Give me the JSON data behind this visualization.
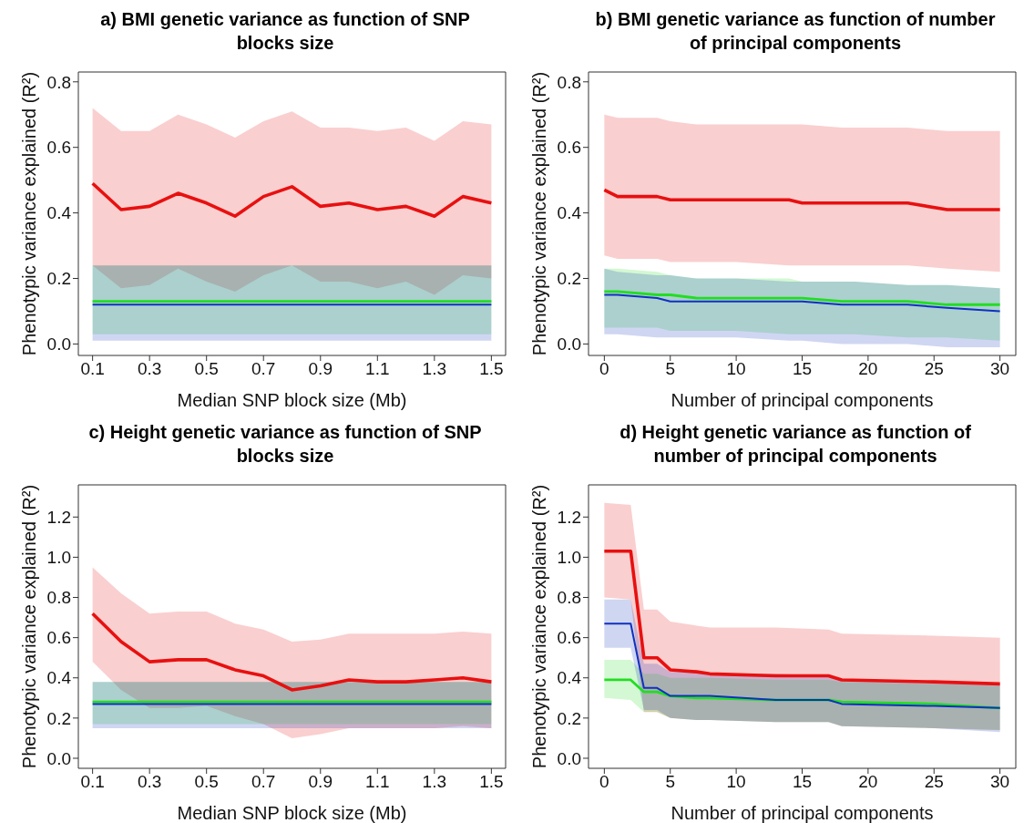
{
  "chart_data": [
    {
      "type": "line",
      "title": "a) BMI genetic variance as function of SNP blocks size",
      "xlabel": "Median SNP block size (Mb)",
      "ylabel": "Phenotypic variance explained (R²)",
      "x": [
        0.1,
        0.2,
        0.3,
        0.4,
        0.5,
        0.6,
        0.7,
        0.8,
        0.9,
        1.0,
        1.1,
        1.2,
        1.3,
        1.4,
        1.5
      ],
      "xlim": [
        0.05,
        1.55
      ],
      "xticks": [
        0.1,
        0.3,
        0.5,
        0.7,
        0.9,
        1.1,
        1.3,
        1.5
      ],
      "ylim": [
        -0.035,
        0.83
      ],
      "yticks": [
        {
          "value": 0,
          "label": "0.0"
        },
        {
          "value": 0.2,
          "label": "0.2"
        },
        {
          "value": 0.4,
          "label": "0.4"
        },
        {
          "value": 0.6,
          "label": "0.6"
        },
        {
          "value": 0.8,
          "label": "0.8"
        }
      ],
      "grid": false,
      "legend": false,
      "series": [
        {
          "color": "#e81010",
          "values": [
            0.49,
            0.41,
            0.42,
            0.46,
            0.43,
            0.39,
            0.45,
            0.48,
            0.42,
            0.43,
            0.41,
            0.42,
            0.39,
            0.45,
            0.43
          ],
          "lower": [
            0.24,
            0.17,
            0.18,
            0.23,
            0.19,
            0.16,
            0.21,
            0.24,
            0.19,
            0.19,
            0.17,
            0.19,
            0.15,
            0.21,
            0.2
          ],
          "upper": [
            0.72,
            0.65,
            0.65,
            0.7,
            0.67,
            0.63,
            0.68,
            0.71,
            0.66,
            0.66,
            0.65,
            0.66,
            0.62,
            0.68,
            0.67
          ]
        },
        {
          "color": "#22dd22",
          "values": [
            0.13,
            0.13,
            0.13,
            0.13,
            0.13,
            0.13,
            0.13,
            0.13,
            0.13,
            0.13,
            0.13,
            0.13,
            0.13,
            0.13,
            0.13
          ],
          "lower": [
            0.03,
            0.03,
            0.03,
            0.03,
            0.03,
            0.03,
            0.03,
            0.03,
            0.03,
            0.03,
            0.03,
            0.03,
            0.03,
            0.03,
            0.03
          ],
          "upper": [
            0.24,
            0.24,
            0.24,
            0.24,
            0.24,
            0.24,
            0.24,
            0.24,
            0.24,
            0.24,
            0.24,
            0.24,
            0.24,
            0.24,
            0.24
          ]
        },
        {
          "color": "#1030c0",
          "values": [
            0.12,
            0.12,
            0.12,
            0.12,
            0.12,
            0.12,
            0.12,
            0.12,
            0.12,
            0.12,
            0.12,
            0.12,
            0.12,
            0.12,
            0.12
          ],
          "lower": [
            0.01,
            0.01,
            0.01,
            0.01,
            0.01,
            0.01,
            0.01,
            0.01,
            0.01,
            0.01,
            0.01,
            0.01,
            0.01,
            0.01,
            0.01
          ],
          "upper": [
            0.24,
            0.24,
            0.24,
            0.24,
            0.24,
            0.24,
            0.24,
            0.24,
            0.24,
            0.24,
            0.24,
            0.24,
            0.24,
            0.24,
            0.24
          ]
        }
      ]
    },
    {
      "type": "line",
      "title": "b) BMI genetic variance as function of number of principal components",
      "xlabel": "Number of principal components",
      "ylabel": "Phenotypic variance explained (R²)",
      "x": [
        0,
        1,
        4,
        5,
        7,
        10,
        14,
        15,
        18,
        19,
        23,
        26,
        30
      ],
      "xlim": [
        -1.2,
        31.2
      ],
      "xticks": [
        0,
        5,
        10,
        15,
        20,
        25,
        30
      ],
      "ylim": [
        -0.035,
        0.83
      ],
      "yticks": [
        {
          "value": 0,
          "label": "0.0"
        },
        {
          "value": 0.2,
          "label": "0.2"
        },
        {
          "value": 0.4,
          "label": "0.4"
        },
        {
          "value": 0.6,
          "label": "0.6"
        },
        {
          "value": 0.8,
          "label": "0.8"
        }
      ],
      "grid": false,
      "legend": false,
      "series": [
        {
          "color": "#e81010",
          "values": [
            0.47,
            0.45,
            0.45,
            0.44,
            0.44,
            0.44,
            0.44,
            0.43,
            0.43,
            0.43,
            0.43,
            0.41,
            0.41
          ],
          "lower": [
            0.27,
            0.26,
            0.26,
            0.25,
            0.25,
            0.25,
            0.24,
            0.24,
            0.24,
            0.24,
            0.24,
            0.23,
            0.22
          ],
          "upper": [
            0.7,
            0.69,
            0.69,
            0.68,
            0.67,
            0.67,
            0.67,
            0.67,
            0.66,
            0.66,
            0.66,
            0.65,
            0.65
          ]
        },
        {
          "color": "#22dd22",
          "values": [
            0.16,
            0.16,
            0.15,
            0.15,
            0.14,
            0.14,
            0.14,
            0.14,
            0.13,
            0.13,
            0.13,
            0.12,
            0.12
          ],
          "lower": [
            0.05,
            0.05,
            0.05,
            0.04,
            0.04,
            0.04,
            0.03,
            0.03,
            0.03,
            0.03,
            0.02,
            0.02,
            0.01
          ],
          "upper": [
            0.23,
            0.23,
            0.22,
            0.21,
            0.2,
            0.2,
            0.2,
            0.19,
            0.19,
            0.19,
            0.18,
            0.18,
            0.17
          ]
        },
        {
          "color": "#1030c0",
          "values": [
            0.15,
            0.15,
            0.14,
            0.13,
            0.13,
            0.13,
            0.13,
            0.13,
            0.12,
            0.12,
            0.12,
            0.11,
            0.1
          ],
          "lower": [
            0.03,
            0.03,
            0.02,
            0.02,
            0.02,
            0.02,
            0.01,
            0.01,
            0,
            0,
            0,
            -0.01,
            -0.01
          ],
          "upper": [
            0.23,
            0.22,
            0.21,
            0.21,
            0.2,
            0.2,
            0.19,
            0.19,
            0.19,
            0.19,
            0.18,
            0.18,
            0.17
          ]
        }
      ]
    },
    {
      "type": "line",
      "title": "c) Height genetic variance as function of SNP blocks size",
      "xlabel": "Median SNP block size (Mb)",
      "ylabel": "Phenotypic variance explained (R²)",
      "x": [
        0.1,
        0.2,
        0.3,
        0.4,
        0.5,
        0.6,
        0.7,
        0.8,
        0.9,
        1.0,
        1.1,
        1.2,
        1.3,
        1.4,
        1.5
      ],
      "xlim": [
        0.05,
        1.55
      ],
      "xticks": [
        0.1,
        0.3,
        0.5,
        0.7,
        0.9,
        1.1,
        1.3,
        1.5
      ],
      "ylim": [
        -0.05,
        1.36
      ],
      "yticks": [
        {
          "value": 0,
          "label": "0.0"
        },
        {
          "value": 0.2,
          "label": "0.2"
        },
        {
          "value": 0.4,
          "label": "0.4"
        },
        {
          "value": 0.6,
          "label": "0.6"
        },
        {
          "value": 0.8,
          "label": "0.8"
        },
        {
          "value": 1,
          "label": "1.0"
        },
        {
          "value": 1.2,
          "label": "1.2"
        }
      ],
      "grid": false,
      "legend": false,
      "series": [
        {
          "color": "#e81010",
          "values": [
            0.72,
            0.58,
            0.48,
            0.49,
            0.49,
            0.44,
            0.41,
            0.34,
            0.36,
            0.39,
            0.38,
            0.38,
            0.39,
            0.4,
            0.38
          ],
          "lower": [
            0.48,
            0.34,
            0.25,
            0.25,
            0.26,
            0.21,
            0.17,
            0.1,
            0.12,
            0.15,
            0.15,
            0.15,
            0.15,
            0.16,
            0.15
          ],
          "upper": [
            0.95,
            0.82,
            0.72,
            0.73,
            0.73,
            0.67,
            0.64,
            0.58,
            0.59,
            0.62,
            0.62,
            0.62,
            0.62,
            0.63,
            0.62
          ]
        },
        {
          "color": "#22dd22",
          "values": [
            0.28,
            0.28,
            0.28,
            0.28,
            0.28,
            0.28,
            0.28,
            0.28,
            0.28,
            0.28,
            0.28,
            0.28,
            0.28,
            0.28,
            0.28
          ],
          "lower": [
            0.17,
            0.17,
            0.17,
            0.17,
            0.17,
            0.17,
            0.17,
            0.17,
            0.17,
            0.17,
            0.17,
            0.17,
            0.17,
            0.17,
            0.17
          ],
          "upper": [
            0.38,
            0.38,
            0.38,
            0.38,
            0.38,
            0.38,
            0.38,
            0.38,
            0.38,
            0.38,
            0.38,
            0.38,
            0.38,
            0.38,
            0.38
          ]
        },
        {
          "color": "#1030c0",
          "values": [
            0.27,
            0.27,
            0.27,
            0.27,
            0.27,
            0.27,
            0.27,
            0.27,
            0.27,
            0.27,
            0.27,
            0.27,
            0.27,
            0.27,
            0.27
          ],
          "lower": [
            0.15,
            0.15,
            0.15,
            0.15,
            0.15,
            0.15,
            0.15,
            0.15,
            0.15,
            0.15,
            0.15,
            0.15,
            0.15,
            0.15,
            0.15
          ],
          "upper": [
            0.38,
            0.38,
            0.38,
            0.38,
            0.38,
            0.38,
            0.38,
            0.38,
            0.38,
            0.38,
            0.38,
            0.38,
            0.38,
            0.38,
            0.38
          ]
        }
      ]
    },
    {
      "type": "line",
      "title": "d) Height genetic variance as function of number of principal components",
      "xlabel": "Number of principal components",
      "ylabel": "Phenotypic variance explained (R²)",
      "x": [
        0,
        2,
        3,
        4,
        5,
        7,
        8,
        13,
        17,
        18,
        25,
        30
      ],
      "xlim": [
        -1.2,
        31.2
      ],
      "xticks": [
        0,
        5,
        10,
        15,
        20,
        25,
        30
      ],
      "ylim": [
        -0.05,
        1.36
      ],
      "yticks": [
        {
          "value": 0,
          "label": "0.0"
        },
        {
          "value": 0.2,
          "label": "0.2"
        },
        {
          "value": 0.4,
          "label": "0.4"
        },
        {
          "value": 0.6,
          "label": "0.6"
        },
        {
          "value": 0.8,
          "label": "0.8"
        },
        {
          "value": 1,
          "label": "1.0"
        },
        {
          "value": 1.2,
          "label": "1.2"
        }
      ],
      "grid": false,
      "legend": false,
      "series": [
        {
          "color": "#e81010",
          "values": [
            1.03,
            1.03,
            0.5,
            0.5,
            0.44,
            0.43,
            0.42,
            0.41,
            0.41,
            0.39,
            0.38,
            0.37
          ],
          "lower": [
            0.8,
            0.79,
            0.23,
            0.23,
            0.2,
            0.19,
            0.19,
            0.18,
            0.18,
            0.16,
            0.15,
            0.14
          ],
          "upper": [
            1.27,
            1.26,
            0.74,
            0.74,
            0.68,
            0.66,
            0.65,
            0.65,
            0.64,
            0.62,
            0.61,
            0.6
          ]
        },
        {
          "color": "#22dd22",
          "values": [
            0.39,
            0.39,
            0.33,
            0.33,
            0.31,
            0.3,
            0.3,
            0.29,
            0.29,
            0.28,
            0.27,
            0.25
          ],
          "lower": [
            0.3,
            0.29,
            0.23,
            0.23,
            0.2,
            0.19,
            0.19,
            0.18,
            0.18,
            0.16,
            0.15,
            0.14
          ],
          "upper": [
            0.49,
            0.49,
            0.42,
            0.42,
            0.4,
            0.4,
            0.4,
            0.39,
            0.39,
            0.38,
            0.37,
            0.36
          ]
        },
        {
          "color": "#1030c0",
          "values": [
            0.67,
            0.67,
            0.35,
            0.35,
            0.31,
            0.31,
            0.31,
            0.29,
            0.29,
            0.27,
            0.26,
            0.25
          ],
          "lower": [
            0.55,
            0.55,
            0.24,
            0.24,
            0.2,
            0.19,
            0.19,
            0.18,
            0.18,
            0.16,
            0.15,
            0.13
          ],
          "upper": [
            0.79,
            0.79,
            0.47,
            0.47,
            0.43,
            0.43,
            0.42,
            0.42,
            0.41,
            0.39,
            0.38,
            0.37
          ]
        }
      ]
    }
  ]
}
